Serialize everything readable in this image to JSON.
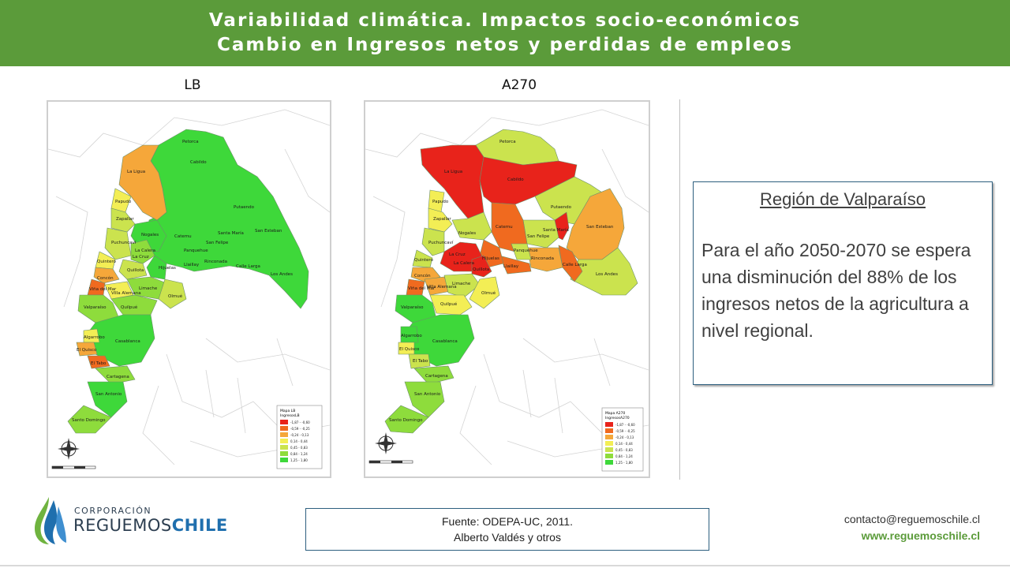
{
  "header": {
    "line1": "Variabilidad climática. Impactos socio-económicos",
    "line2": "Cambio en Ingresos netos y perdidas de empleos"
  },
  "colors": {
    "header_green": "#5b9b3a",
    "class_1": "#e8231b",
    "class_2": "#f06a1f",
    "class_3": "#f5a73a",
    "class_4": "#f3ee55",
    "class_5": "#cbe34e",
    "class_6": "#8edc3c",
    "class_7": "#3ed83a",
    "accent_blue": "#1f6fae"
  },
  "maps": [
    {
      "id": "lb",
      "title": "LB",
      "legend_title": "Mapa LB",
      "legend_subtitle": "IngresosLB",
      "legend": [
        "-1,87 - -0,60",
        "-0,59 - -0,25",
        "-0,24 - 0,13",
        "0,14 - 0,44",
        "0,45 - 0,83",
        "0,84 - 1,24",
        "1,25 - 1,80"
      ],
      "labels": [
        "Petorca",
        "Cabildo",
        "La Ligua",
        "Papudo",
        "Zapallar",
        "Putaendo",
        "San Felipe",
        "Santa María",
        "San Esteban",
        "Los Andes",
        "Calle Larga",
        "Rinconada",
        "Llaillay",
        "Panquehue",
        "Catemu",
        "Nogales",
        "Hijuelas",
        "La Calera",
        "La Cruz",
        "Quillota",
        "Puchuncaví",
        "Quintero",
        "Concón",
        "Viña del Mar",
        "Villa Alemana",
        "Olmué",
        "Quilpué",
        "Limache",
        "Valparaíso",
        "Casablanca",
        "Algarrobo",
        "El Quisco",
        "El Tabo",
        "Cartagena",
        "San Antonio",
        "Santo Domingo"
      ]
    },
    {
      "id": "a270",
      "title": "A270",
      "legend_title": "Mapa A270",
      "legend_subtitle": "IngresosA270",
      "legend": [
        "-1,87 - -0,60",
        "-0,59 - -0,25",
        "-0,24 - 0,13",
        "0,14 - 0,44",
        "0,45 - 0,83",
        "0,84 - 1,24",
        "1,25 - 1,80"
      ],
      "labels": [
        "Petorca",
        "Cabildo",
        "La Ligua",
        "Papudo",
        "Zapallar",
        "Putaendo",
        "San Felipe",
        "Santa María",
        "San Esteban",
        "Los Andes",
        "Calle Larga",
        "Rinconada",
        "Llaillay",
        "Panquehue",
        "Catemu",
        "Nogales",
        "Hijuelas",
        "La Calera",
        "La Cruz",
        "Quillota",
        "Puchuncaví",
        "Quintero",
        "Concón",
        "Viña del Mar",
        "Villa Alemana",
        "Olmué",
        "Quilpué",
        "Limache",
        "Valparaíso",
        "Casablanca",
        "Algarrobo",
        "El Quisco",
        "El Tabo",
        "Cartagena",
        "San Antonio",
        "Santo Domingo"
      ]
    }
  ],
  "info": {
    "title": "Región de Valparaíso",
    "body": "Para el año 2050-2070 se espera una disminución del 88% de los ingresos netos de la agricultura a nivel regional."
  },
  "source": {
    "line1": "Fuente: ODEPA-UC, 2011.",
    "line2": "Alberto Valdés y otros"
  },
  "logo": {
    "small": "CORPORACIÓN",
    "big_a": "REGUEMOS",
    "big_b": "CHILE"
  },
  "contact": {
    "email": "contacto@reguemoschile.cl",
    "web": "www.reguemoschile.cl"
  }
}
